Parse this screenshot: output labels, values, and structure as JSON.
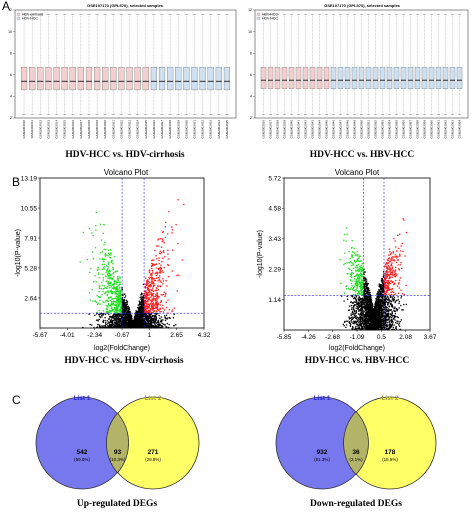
{
  "panel_labels": [
    "A",
    "B",
    "C"
  ],
  "colors": {
    "box_group1": "#f2d0d0",
    "box_group2": "#cfe0f0",
    "median": "#1a1a1a",
    "volcano_up": "#ff1a1a",
    "volcano_down": "#22dd22",
    "volcano_ns": "#000000",
    "threshold": "#2222ee",
    "venn_list1": "#7777ee",
    "venn_list2": "#ffff66",
    "venn_overlap": "#b4b468",
    "venn_list1_label": "#2222cc",
    "venn_list2_label": "#999933"
  },
  "chart_data": [
    {
      "type": "box",
      "panel": "A",
      "title": "GSE107170 (GPL570), selected samples",
      "caption": "HDV-HCC vs. HDV-cirrhosis",
      "legend": [
        "HDV-cirrhosis",
        "HDV-HCC"
      ],
      "ylim": [
        2,
        12
      ],
      "yticks": [
        2,
        4,
        6,
        8,
        10,
        12
      ],
      "n_group1": 16,
      "n_group2": 10,
      "sample_labels": [
        "GSM2902010",
        "GSM2902011",
        "GSM2902012",
        "GSM2902013",
        "GSM2902014",
        "GSM2902015",
        "GSM2902016",
        "GSM2902017",
        "GSM2902018",
        "GSM2902019",
        "GSM2902020",
        "GSM2902021",
        "GSM2902022",
        "GSM2902023",
        "GSM2902024",
        "GSM2902025",
        "GSM2902026",
        "GSM2902027",
        "GSM2902028",
        "GSM2902029",
        "GSM2902030",
        "GSM2902031",
        "GSM2902032",
        "GSM2902033",
        "GSM2902034",
        "GSM2902035"
      ],
      "stats": {
        "whisker_low": 2.3,
        "q1": 4.6,
        "median": 5.4,
        "q3": 6.7,
        "whisker_high": 11.6
      }
    },
    {
      "type": "box",
      "panel": "A",
      "title": "GSE107170 (GPL570), selected samples",
      "caption": "HDV-HCC vs. HBV-HCC",
      "legend": [
        "HBV-HCC",
        "HDV-HCC"
      ],
      "ylim": [
        2,
        12
      ],
      "yticks": [
        2,
        4,
        6,
        8,
        10,
        12
      ],
      "n_group1": 10,
      "n_group2": 19,
      "sample_labels": [
        "GSM2902036",
        "GSM2902037",
        "GSM2902038",
        "GSM2902039",
        "GSM2902040",
        "GSM2902041",
        "GSM2902042",
        "GSM2902043",
        "GSM2902044",
        "GSM2902045",
        "GSM2902046",
        "GSM2902047",
        "GSM2902048",
        "GSM2902049",
        "GSM2902050",
        "GSM2902051",
        "GSM2902052",
        "GSM2902053",
        "GSM2902054",
        "GSM2902055",
        "GSM2902056",
        "GSM2902057",
        "GSM2902058",
        "GSM2902059",
        "GSM2902060",
        "GSM2902061",
        "GSM2902062",
        "GSM2902063",
        "GSM2902064"
      ],
      "stats": {
        "whisker_low": 2.3,
        "q1": 4.7,
        "median": 5.5,
        "q3": 6.7,
        "whisker_high": 11.6
      }
    },
    {
      "type": "scatter",
      "panel": "B",
      "title": "Volcano Plot",
      "xlabel": "log2(FoldChange)",
      "ylabel": "-log10(P-value)",
      "caption": "HDV-HCC vs. HDV-cirrhosis",
      "xlim": [
        -5.67,
        4.32
      ],
      "ylim": [
        0,
        13.19
      ],
      "xticks": [
        "-5.67",
        "-4.01",
        "-2.34",
        "-0.67",
        "1",
        "2.65",
        "4.32"
      ],
      "yticks": [
        "2.64",
        "5.28",
        "7.91",
        "10.55",
        "13.19"
      ],
      "ytick_values": [
        2.64,
        5.28,
        7.91,
        10.55,
        13.19
      ],
      "thresholds": {
        "x": [
          -0.67,
          0.67
        ],
        "y": 1.3
      },
      "seed": 7,
      "n_points": 3200,
      "spread_down": 1.2,
      "spread_up": 1.0,
      "ypower": 1.0
    },
    {
      "type": "scatter",
      "panel": "B",
      "title": "Volcano Plot",
      "xlabel": "log2(FoldChange)",
      "ylabel": "-log10(P-value)",
      "caption": "HDV-HCC vs. HBV-HCC",
      "xlim": [
        -5.85,
        3.67
      ],
      "ylim": [
        0,
        5.72
      ],
      "xticks": [
        "-5.85",
        "-4.26",
        "-2.68",
        "-1.09",
        "0.5",
        "2.08",
        "3.67"
      ],
      "yticks": [
        "1.14",
        "2.29",
        "3.43",
        "4.58",
        "5.72"
      ],
      "ytick_values": [
        1.14,
        2.29,
        3.43,
        4.58,
        5.72
      ],
      "thresholds": {
        "x": [
          -0.67,
          0.67
        ],
        "y": 1.3
      },
      "seed": 19,
      "n_points": 2800,
      "spread_down": 0.9,
      "spread_up": 0.8,
      "ypower": 1.6
    },
    {
      "type": "venn",
      "panel": "C",
      "list1_label": "List 1",
      "list2_label": "List 2",
      "left_count": "542",
      "left_pct": "(59.8%)",
      "overlap_count": "93",
      "overlap_pct": "(10.3%)",
      "right_count": "271",
      "right_pct": "(29.9%)",
      "caption": "Up-regulated DEGs"
    },
    {
      "type": "venn",
      "panel": "C",
      "list1_label": "List 1",
      "list2_label": "List 2",
      "left_count": "932",
      "left_pct": "(81.3%)",
      "overlap_count": "36",
      "overlap_pct": "(3.1%)",
      "right_count": "178",
      "right_pct": "(15.5%)",
      "caption": "Down-regulated DEGs"
    }
  ]
}
